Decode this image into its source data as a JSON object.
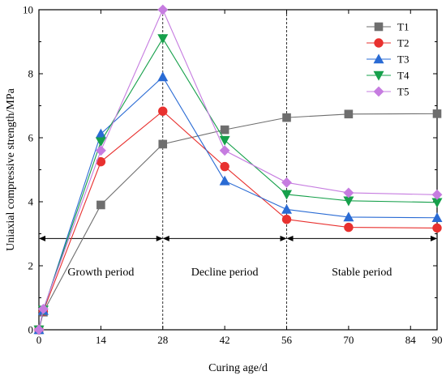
{
  "chart_data": {
    "type": "line",
    "xlabel": "Curing age/d",
    "ylabel": "Uniaxial compressive strength/MPa",
    "xlim": [
      0,
      90
    ],
    "ylim": [
      0,
      10
    ],
    "x_ticks": [
      0,
      14,
      28,
      42,
      56,
      70,
      84,
      90
    ],
    "y_ticks": [
      0,
      2,
      4,
      6,
      8,
      10
    ],
    "x": [
      0,
      1,
      14,
      28,
      42,
      56,
      70,
      90
    ],
    "series": [
      {
        "name": "T1",
        "marker": "square",
        "color": "#6e6e6e",
        "values": [
          0,
          0.55,
          3.9,
          5.8,
          6.25,
          6.63,
          6.74,
          6.75
        ]
      },
      {
        "name": "T2",
        "marker": "circle",
        "color": "#e8312f",
        "values": [
          0,
          0.58,
          5.25,
          6.83,
          5.1,
          3.45,
          3.2,
          3.18
        ]
      },
      {
        "name": "T3",
        "marker": "triangle-up",
        "color": "#2a6bd4",
        "values": [
          0,
          0.6,
          6.12,
          7.9,
          4.65,
          3.76,
          3.52,
          3.5
        ]
      },
      {
        "name": "T4",
        "marker": "triangle-down",
        "color": "#16a04b",
        "values": [
          0,
          0.62,
          5.88,
          9.1,
          5.92,
          4.23,
          4.03,
          3.98
        ]
      },
      {
        "name": "T5",
        "marker": "diamond",
        "color": "#c67ce0",
        "values": [
          0,
          0.65,
          5.6,
          10.0,
          5.6,
          4.6,
          4.28,
          4.22
        ]
      }
    ],
    "period_dividers": [
      28,
      56
    ],
    "period_arrow_y": 2.85,
    "periods": [
      {
        "label": "Growth period",
        "from": 0,
        "to": 28
      },
      {
        "label": "Decline period",
        "from": 28,
        "to": 56
      },
      {
        "label": "Stable period",
        "from": 56,
        "to": 90
      }
    ],
    "legend_position": "top-right",
    "grid": false
  }
}
